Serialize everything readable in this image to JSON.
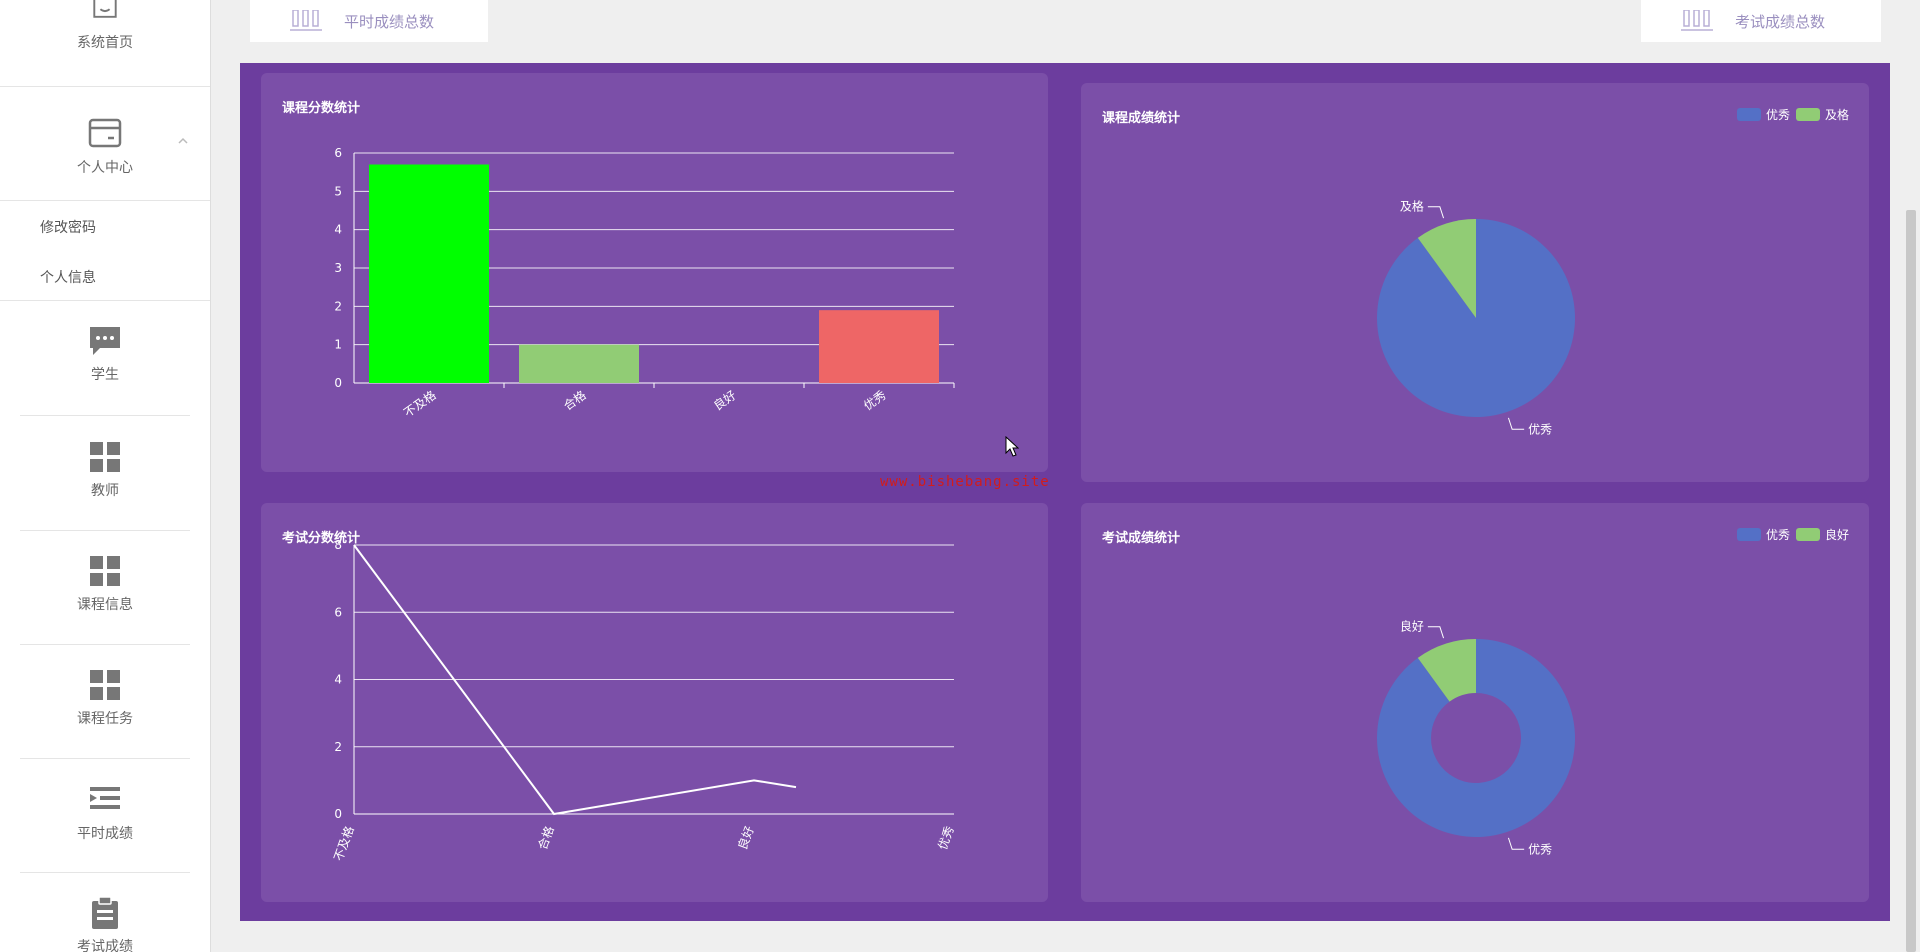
{
  "sidebar": {
    "items": [
      {
        "label": "系统首页",
        "icon": "home-icon"
      },
      {
        "label": "个人中心",
        "icon": "card-icon"
      },
      {
        "label": "学生",
        "icon": "chat-icon"
      },
      {
        "label": "教师",
        "icon": "grid-icon"
      },
      {
        "label": "课程信息",
        "icon": "grid-icon"
      },
      {
        "label": "课程任务",
        "icon": "grid-icon"
      },
      {
        "label": "平时成绩",
        "icon": "list-indent-icon"
      },
      {
        "label": "考试成绩",
        "icon": "clipboard-icon"
      }
    ],
    "submenu": [
      "修改密码",
      "个人信息"
    ]
  },
  "top_cards": {
    "left_label": "平时成绩总数",
    "right_label": "考试成绩总数"
  },
  "watermark": "www.bishebang.site",
  "panels": {
    "course_score": {
      "title": "课程分数统计"
    },
    "course_grade": {
      "title": "课程成绩统计",
      "legend": [
        "优秀",
        "及格"
      ]
    },
    "exam_score": {
      "title": "考试分数统计"
    },
    "exam_grade": {
      "title": "考试成绩统计",
      "legend": [
        "优秀",
        "良好"
      ]
    }
  },
  "colors": {
    "purple_bg": "#6c3d9e",
    "panel_bg": "#7b4fa8",
    "blue": "#5470c6",
    "green": "#91cc75",
    "bright_green": "#00ff00",
    "red": "#ee6666"
  },
  "chart_data": [
    {
      "type": "bar",
      "title": "课程分数统计",
      "categories": [
        "不及格",
        "合格",
        "良好",
        "优秀"
      ],
      "values": [
        5.7,
        1,
        0,
        1.9
      ],
      "colors": [
        "#00ff00",
        "#91cc75",
        "#fac858",
        "#ee6666"
      ],
      "ylim": [
        0,
        6
      ],
      "yticks": [
        0,
        1,
        2,
        3,
        4,
        5,
        6
      ],
      "grid": true
    },
    {
      "type": "pie",
      "title": "课程成绩统计",
      "labels": [
        "优秀",
        "及格"
      ],
      "values": [
        90,
        10
      ],
      "colors": [
        "#5470c6",
        "#91cc75"
      ],
      "legend": "top-right"
    },
    {
      "type": "line",
      "title": "考试分数统计",
      "categories": [
        "不及格",
        "合格",
        "良好",
        "优秀"
      ],
      "values": [
        8,
        0,
        1,
        0.8
      ],
      "ylim": [
        0,
        8
      ],
      "yticks": [
        0,
        2,
        4,
        6,
        8
      ],
      "grid": true
    },
    {
      "type": "pie",
      "title": "考试成绩统计",
      "labels": [
        "优秀",
        "良好"
      ],
      "values": [
        90,
        10
      ],
      "colors": [
        "#5470c6",
        "#91cc75"
      ],
      "donut": true,
      "legend": "top-right"
    }
  ]
}
